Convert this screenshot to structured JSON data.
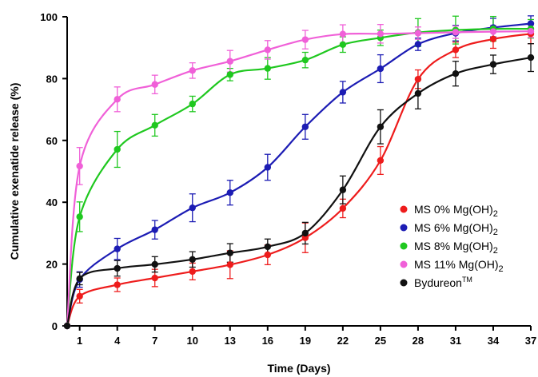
{
  "chart_data": {
    "type": "line",
    "xlabel": "Time (Days)",
    "ylabel": "Cumulative exenatide release (%)",
    "x": [
      0,
      1,
      4,
      7,
      10,
      13,
      16,
      19,
      22,
      25,
      28,
      31,
      34,
      37
    ],
    "x_ticks": [
      1,
      4,
      7,
      10,
      13,
      16,
      19,
      22,
      25,
      28,
      31,
      34,
      37
    ],
    "y_ticks": [
      0,
      20,
      40,
      60,
      80,
      100
    ],
    "xlim": [
      0,
      37
    ],
    "ylim": [
      0,
      100
    ],
    "grid": false,
    "legend_position": "bottom-right",
    "series": [
      {
        "name": "MS 0% Mg(OH)",
        "name_sub": "2",
        "color": "#ee1c1c",
        "values": [
          0,
          9.6,
          13.3,
          15.5,
          17.6,
          19.8,
          23.0,
          28.5,
          38.0,
          53.5,
          79.8,
          89.3,
          92.8,
          94.5
        ],
        "errors": [
          0,
          2.2,
          2.2,
          2.8,
          2.7,
          4.5,
          3.2,
          4.8,
          3.0,
          4.5,
          3.0,
          2.5,
          3.0,
          3.2
        ]
      },
      {
        "name": "MS 6% Mg(OH)",
        "name_sub": "2",
        "color": "#1c1cb4",
        "values": [
          0,
          15.0,
          24.9,
          31.1,
          38.2,
          43.1,
          51.3,
          64.4,
          75.6,
          83.2,
          91.1,
          94.7,
          96.5,
          97.8
        ],
        "errors": [
          0,
          2.5,
          3.4,
          3.0,
          4.5,
          4.0,
          4.2,
          4.0,
          3.5,
          4.5,
          2.0,
          2.5,
          3.0,
          2.5
        ]
      },
      {
        "name": "MS 8% Mg(OH)",
        "name_sub": "2",
        "color": "#1fc81f",
        "values": [
          0,
          35.3,
          57.1,
          64.9,
          71.8,
          81.3,
          83.3,
          86.0,
          91.0,
          93.2,
          94.9,
          95.7,
          96.1,
          96.1
        ],
        "errors": [
          0,
          4.8,
          5.8,
          3.5,
          2.5,
          2.0,
          3.5,
          2.5,
          2.5,
          2.5,
          4.5,
          4.5,
          4.0,
          3.0
        ]
      },
      {
        "name": "MS 11% Mg(OH)",
        "name_sub": "2",
        "color": "#f060d8",
        "values": [
          0,
          51.7,
          73.3,
          78.1,
          82.6,
          85.6,
          89.3,
          92.6,
          94.4,
          94.5,
          94.7,
          95.0,
          95.2,
          95.3
        ],
        "errors": [
          0,
          6.0,
          4.0,
          3.0,
          2.5,
          3.5,
          3.0,
          3.0,
          3.0,
          3.0,
          2.0,
          2.0,
          2.0,
          2.0
        ]
      },
      {
        "name": "Bydureon",
        "name_sup": "TM",
        "color": "#111111",
        "values": [
          0,
          15.3,
          18.6,
          19.9,
          21.5,
          23.6,
          25.6,
          30.0,
          44.0,
          64.4,
          75.2,
          81.6,
          84.6,
          86.8
        ],
        "errors": [
          0,
          2.0,
          2.5,
          2.5,
          2.5,
          3.0,
          2.5,
          3.5,
          4.5,
          5.5,
          5.0,
          4.0,
          3.0,
          4.5
        ]
      }
    ]
  }
}
